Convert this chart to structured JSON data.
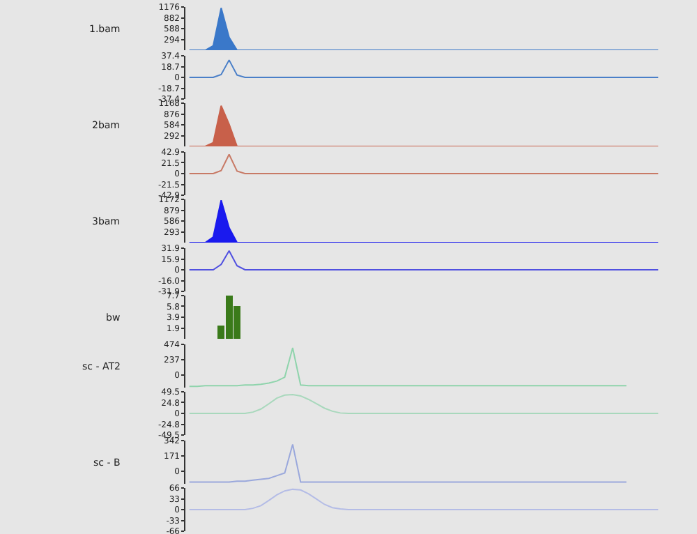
{
  "chart_data": [
    {
      "type": "area",
      "ylabel": "1.bam",
      "categories": [
        null,
        null,
        null,
        null,
        null,
        null,
        null,
        null,
        null,
        null,
        null,
        null,
        null,
        null,
        null,
        null,
        null,
        null,
        null,
        null,
        null,
        null,
        null,
        null,
        null,
        null,
        null,
        null,
        null,
        null,
        null,
        null,
        null,
        null,
        null,
        null,
        null,
        null,
        null,
        null,
        null,
        null,
        null,
        null,
        null,
        null,
        null,
        null,
        null,
        null,
        null,
        null,
        null,
        null,
        null,
        null,
        null,
        null,
        null,
        null
      ],
      "values": [
        0,
        0,
        0,
        120,
        1150,
        350,
        0,
        0,
        0,
        0,
        0,
        0,
        0,
        0,
        0,
        0,
        0,
        0,
        0,
        0,
        0,
        0,
        0,
        0,
        0,
        0,
        0,
        0,
        0,
        0,
        0,
        0,
        0,
        0,
        0,
        0,
        0,
        0,
        0,
        0,
        0,
        0,
        0,
        0,
        0,
        0,
        0,
        0,
        0,
        0,
        0,
        0,
        0,
        0,
        0,
        0,
        0,
        0,
        0,
        0
      ],
      "color": "#3a78c9",
      "ylim": [
        0,
        1176
      ],
      "yticks": [
        294,
        588,
        882,
        1176
      ],
      "tick_labels": "y"
    },
    {
      "type": "line",
      "categories": [
        null,
        null,
        null,
        null,
        null,
        null,
        null,
        null,
        null,
        null,
        null,
        null,
        null,
        null,
        null,
        null,
        null,
        null,
        null,
        null,
        null,
        null,
        null,
        null,
        null,
        null,
        null,
        null,
        null,
        null,
        null,
        null,
        null,
        null,
        null,
        null,
        null,
        null,
        null,
        null,
        null,
        null,
        null,
        null,
        null,
        null,
        null,
        null,
        null,
        null,
        null,
        null,
        null,
        null,
        null,
        null,
        null,
        null,
        null,
        null
      ],
      "values": [
        0,
        0,
        0,
        0,
        5,
        30,
        4,
        0,
        0,
        0,
        0,
        0,
        0,
        0,
        0,
        0,
        0,
        0,
        0,
        0,
        0,
        0,
        0,
        0,
        0,
        0,
        0,
        0,
        0,
        0,
        0,
        0,
        0,
        0,
        0,
        0,
        0,
        0,
        0,
        0,
        0,
        0,
        0,
        0,
        0,
        0,
        0,
        0,
        0,
        0,
        0,
        0,
        0,
        0,
        0,
        0,
        0,
        0,
        0,
        0
      ],
      "color": "#4a7fc8",
      "ylim": [
        -37.4,
        37.4
      ],
      "yticks": [
        -37.4,
        -18.7,
        0,
        18.7,
        37.4
      ],
      "tick_labels": "y"
    },
    {
      "type": "area",
      "ylabel": "2bam",
      "categories": [
        null,
        null,
        null,
        null,
        null,
        null,
        null,
        null,
        null,
        null,
        null,
        null,
        null,
        null,
        null,
        null,
        null,
        null,
        null,
        null,
        null,
        null,
        null,
        null,
        null,
        null,
        null,
        null,
        null,
        null,
        null,
        null,
        null,
        null,
        null,
        null,
        null,
        null,
        null,
        null,
        null,
        null,
        null,
        null,
        null,
        null,
        null,
        null,
        null,
        null,
        null,
        null,
        null,
        null,
        null,
        null,
        null,
        null,
        null,
        null
      ],
      "values": [
        0,
        0,
        0,
        100,
        1100,
        600,
        0,
        0,
        0,
        0,
        0,
        0,
        0,
        0,
        0,
        0,
        0,
        0,
        0,
        0,
        0,
        0,
        0,
        0,
        0,
        0,
        0,
        0,
        0,
        0,
        0,
        0,
        0,
        0,
        0,
        0,
        0,
        0,
        0,
        0,
        0,
        0,
        0,
        0,
        0,
        0,
        0,
        0,
        0,
        0,
        0,
        0,
        0,
        0,
        0,
        0,
        0,
        0,
        0,
        0
      ],
      "color": "#c8604a",
      "ylim": [
        0,
        1168
      ],
      "yticks": [
        292,
        584,
        876,
        1168
      ],
      "tick_labels": "y"
    },
    {
      "type": "line",
      "categories": [
        null,
        null,
        null,
        null,
        null,
        null,
        null,
        null,
        null,
        null,
        null,
        null,
        null,
        null,
        null,
        null,
        null,
        null,
        null,
        null,
        null,
        null,
        null,
        null,
        null,
        null,
        null,
        null,
        null,
        null,
        null,
        null,
        null,
        null,
        null,
        null,
        null,
        null,
        null,
        null,
        null,
        null,
        null,
        null,
        null,
        null,
        null,
        null,
        null,
        null,
        null,
        null,
        null,
        null,
        null,
        null,
        null,
        null,
        null,
        null
      ],
      "values": [
        0,
        0,
        0,
        0,
        6,
        38,
        5,
        0,
        0,
        0,
        0,
        0,
        0,
        0,
        0,
        0,
        0,
        0,
        0,
        0,
        0,
        0,
        0,
        0,
        0,
        0,
        0,
        0,
        0,
        0,
        0,
        0,
        0,
        0,
        0,
        0,
        0,
        0,
        0,
        0,
        0,
        0,
        0,
        0,
        0,
        0,
        0,
        0,
        0,
        0,
        0,
        0,
        0,
        0,
        0,
        0,
        0,
        0,
        0,
        0
      ],
      "color": "#c87a66",
      "ylim": [
        -42.9,
        42.9
      ],
      "yticks": [
        -42.9,
        -21.5,
        0,
        21.5,
        42.9
      ],
      "tick_labels": "y"
    },
    {
      "type": "area",
      "ylabel": "3bam",
      "categories": [
        null,
        null,
        null,
        null,
        null,
        null,
        null,
        null,
        null,
        null,
        null,
        null,
        null,
        null,
        null,
        null,
        null,
        null,
        null,
        null,
        null,
        null,
        null,
        null,
        null,
        null,
        null,
        null,
        null,
        null,
        null,
        null,
        null,
        null,
        null,
        null,
        null,
        null,
        null,
        null,
        null,
        null,
        null,
        null,
        null,
        null,
        null,
        null,
        null,
        null,
        null,
        null,
        null,
        null,
        null,
        null,
        null,
        null,
        null,
        null
      ],
      "values": [
        0,
        0,
        0,
        150,
        1150,
        400,
        0,
        0,
        0,
        0,
        0,
        0,
        0,
        0,
        0,
        0,
        0,
        0,
        0,
        0,
        0,
        0,
        0,
        0,
        0,
        0,
        0,
        0,
        0,
        0,
        0,
        0,
        0,
        0,
        0,
        0,
        0,
        0,
        0,
        0,
        0,
        0,
        0,
        0,
        0,
        0,
        0,
        0,
        0,
        0,
        0,
        0,
        0,
        0,
        0,
        0,
        0,
        0,
        0,
        0
      ],
      "color": "#1a1aee",
      "ylim": [
        0,
        1172
      ],
      "yticks": [
        293,
        586,
        879,
        1172
      ],
      "tick_labels": "y"
    },
    {
      "type": "line",
      "categories": [
        null,
        null,
        null,
        null,
        null,
        null,
        null,
        null,
        null,
        null,
        null,
        null,
        null,
        null,
        null,
        null,
        null,
        null,
        null,
        null,
        null,
        null,
        null,
        null,
        null,
        null,
        null,
        null,
        null,
        null,
        null,
        null,
        null,
        null,
        null,
        null,
        null,
        null,
        null,
        null,
        null,
        null,
        null,
        null,
        null,
        null,
        null,
        null,
        null,
        null,
        null,
        null,
        null,
        null,
        null,
        null,
        null,
        null,
        null,
        null
      ],
      "values": [
        0,
        0,
        0,
        0,
        8,
        28,
        6,
        0,
        0,
        0,
        0,
        0,
        0,
        0,
        0,
        0,
        0,
        0,
        0,
        0,
        0,
        0,
        0,
        0,
        0,
        0,
        0,
        0,
        0,
        0,
        0,
        0,
        0,
        0,
        0,
        0,
        0,
        0,
        0,
        0,
        0,
        0,
        0,
        0,
        0,
        0,
        0,
        0,
        0,
        0,
        0,
        0,
        0,
        0,
        0,
        0,
        0,
        0,
        0,
        0
      ],
      "color": "#5050e0",
      "ylim": [
        -31.9,
        31.9
      ],
      "yticks": [
        {
          "value": -31.9,
          "label": "-31.9"
        },
        {
          "value": -16,
          "label": "-16.0"
        },
        0,
        15.9,
        31.9
      ],
      "tick_labels": "y"
    },
    {
      "type": "bar",
      "ylabel": "bw",
      "categories": [
        null,
        null,
        null,
        null,
        null,
        null,
        null,
        null,
        null,
        null,
        null,
        null,
        null,
        null,
        null,
        null,
        null,
        null,
        null,
        null,
        null,
        null,
        null,
        null,
        null,
        null,
        null,
        null,
        null,
        null,
        null,
        null,
        null,
        null,
        null,
        null,
        null,
        null,
        null,
        null,
        null,
        null,
        null,
        null,
        null,
        null,
        null,
        null,
        null,
        null,
        null,
        null,
        null,
        null,
        null,
        null,
        null,
        null,
        null,
        null
      ],
      "values": [
        null,
        null,
        null,
        null,
        2.3,
        7.7,
        5.8,
        null,
        null,
        null,
        null,
        null,
        null,
        null,
        null,
        null,
        null,
        null,
        null,
        null,
        null,
        null,
        null,
        null,
        null,
        null,
        null,
        null,
        null,
        null,
        null,
        null,
        null,
        null,
        null,
        null,
        null,
        null,
        null,
        null,
        null,
        null,
        null,
        null,
        null,
        null,
        null,
        null,
        null,
        null,
        null,
        null,
        null,
        null,
        null,
        null,
        null,
        null,
        null,
        null
      ],
      "color": "#3a7a1a",
      "ylim": [
        0,
        7.7
      ],
      "yticks": [
        1.9,
        3.9,
        5.8,
        7.7
      ],
      "tick_labels": "y"
    },
    {
      "type": "line",
      "ylabel": "sc - AT2",
      "categories": [
        null,
        null,
        null,
        null,
        null,
        null,
        null,
        null,
        null,
        null,
        null,
        null,
        null,
        null,
        null,
        null,
        null,
        null,
        null,
        null,
        null,
        null,
        null,
        null,
        null,
        null,
        null,
        null,
        null,
        null,
        null,
        null,
        null,
        null,
        null,
        null,
        null,
        null,
        null,
        null,
        null,
        null,
        null,
        null,
        null,
        null,
        null,
        null,
        null,
        null,
        null,
        null,
        null,
        null,
        null,
        null,
        null,
        null,
        null,
        null
      ],
      "values": [
        -170,
        -170,
        -160,
        -160,
        -160,
        -160,
        -160,
        -150,
        -150,
        -140,
        -120,
        -90,
        -30,
        420,
        -150,
        -160,
        -160,
        -160,
        -160,
        -160,
        -160,
        -160,
        -160,
        -160,
        -160,
        -160,
        -160,
        -160,
        -160,
        -160,
        -160,
        -160,
        -160,
        -160,
        -160,
        -160,
        -160,
        -160,
        -160,
        -160,
        -160,
        -160,
        -160,
        -160,
        -160,
        -160,
        -160,
        -160,
        -160,
        -160,
        -160,
        -160,
        -160,
        -160,
        -160,
        -160,
        null,
        null,
        null,
        null
      ],
      "color": "#8fd4ac",
      "ylim": [
        -190,
        474
      ],
      "yticks": [
        0,
        237,
        474
      ],
      "tick_labels": "y"
    },
    {
      "type": "line",
      "categories": [
        null,
        null,
        null,
        null,
        null,
        null,
        null,
        null,
        null,
        null,
        null,
        null,
        null,
        null,
        null,
        null,
        null,
        null,
        null,
        null,
        null,
        null,
        null,
        null,
        null,
        null,
        null,
        null,
        null,
        null,
        null,
        null,
        null,
        null,
        null,
        null,
        null,
        null,
        null,
        null,
        null,
        null,
        null,
        null,
        null,
        null,
        null,
        null,
        null,
        null,
        null,
        null,
        null,
        null,
        null,
        null,
        null,
        null,
        null,
        null
      ],
      "values": [
        0,
        0,
        0,
        0,
        0,
        0,
        0,
        0,
        3,
        10,
        22,
        35,
        42,
        43,
        40,
        32,
        22,
        12,
        5,
        1,
        0,
        0,
        0,
        0,
        0,
        0,
        0,
        0,
        0,
        0,
        0,
        0,
        0,
        0,
        0,
        0,
        0,
        0,
        0,
        0,
        0,
        0,
        0,
        0,
        0,
        0,
        0,
        0,
        0,
        0,
        0,
        0,
        0,
        0,
        0,
        0,
        0,
        0,
        0,
        0
      ],
      "color": "#a8d8bc",
      "ylim": [
        -49.5,
        49.5
      ],
      "yticks": [
        -49.5,
        -24.8,
        0,
        24.8,
        49.5
      ],
      "tick_labels": "y"
    },
    {
      "type": "line",
      "ylabel": "sc - B",
      "categories": [
        null,
        null,
        null,
        null,
        null,
        null,
        null,
        null,
        null,
        null,
        null,
        null,
        null,
        null,
        null,
        null,
        null,
        null,
        null,
        null,
        null,
        null,
        null,
        null,
        null,
        null,
        null,
        null,
        null,
        null,
        null,
        null,
        null,
        null,
        null,
        null,
        null,
        null,
        null,
        null,
        null,
        null,
        null,
        null,
        null,
        null,
        null,
        null,
        null,
        null,
        null,
        null,
        null,
        null,
        null,
        null,
        null,
        null,
        null,
        null
      ],
      "values": [
        -120,
        -120,
        -120,
        -120,
        -120,
        -120,
        -110,
        -110,
        -100,
        -90,
        -80,
        -50,
        -20,
        300,
        -120,
        -120,
        -120,
        -120,
        -120,
        -120,
        -120,
        -120,
        -120,
        -120,
        -120,
        -120,
        -120,
        -120,
        -120,
        -120,
        -120,
        -120,
        -120,
        -120,
        -120,
        -120,
        -120,
        -120,
        -120,
        -120,
        -120,
        -120,
        -120,
        -120,
        -120,
        -120,
        -120,
        -120,
        -120,
        -120,
        -120,
        -120,
        -120,
        -120,
        -120,
        -120,
        null,
        null,
        null,
        null
      ],
      "color": "#9aa8dc",
      "ylim": [
        -140,
        342
      ],
      "yticks": [
        0,
        171,
        342
      ],
      "tick_labels": "y"
    },
    {
      "type": "line",
      "categories": [
        null,
        null,
        null,
        null,
        null,
        null,
        null,
        null,
        null,
        null,
        null,
        null,
        null,
        null,
        null,
        null,
        null,
        null,
        null,
        null,
        null,
        null,
        null,
        null,
        null,
        null,
        null,
        null,
        null,
        null,
        null,
        null,
        null,
        null,
        null,
        null,
        null,
        null,
        null,
        null,
        null,
        null,
        null,
        null,
        null,
        null,
        null,
        null,
        null,
        null,
        null,
        null,
        null,
        null,
        null,
        null,
        null,
        null,
        null,
        null
      ],
      "values": [
        0,
        0,
        0,
        0,
        0,
        0,
        0,
        0,
        4,
        12,
        28,
        45,
        57,
        62,
        60,
        48,
        32,
        16,
        6,
        2,
        0,
        0,
        0,
        0,
        0,
        0,
        0,
        0,
        0,
        0,
        0,
        0,
        0,
        0,
        0,
        0,
        0,
        0,
        0,
        0,
        0,
        0,
        0,
        0,
        0,
        0,
        0,
        0,
        0,
        0,
        0,
        0,
        0,
        0,
        0,
        0,
        0,
        0,
        0,
        0
      ],
      "color": "#b4bce6",
      "ylim": [
        -66,
        66
      ],
      "yticks": [
        -66,
        -33,
        0,
        33,
        66
      ],
      "tick_labels": "y"
    }
  ]
}
